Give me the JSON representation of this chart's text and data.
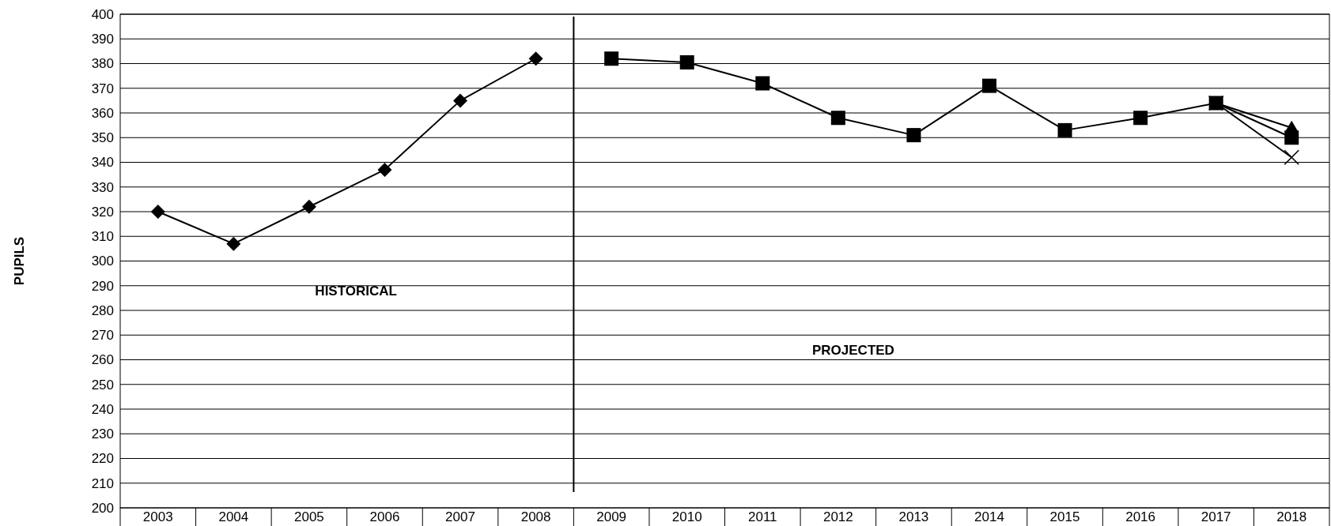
{
  "chart_data": {
    "type": "line",
    "ylabel": "PUPILS",
    "x": [
      2003,
      2004,
      2005,
      2006,
      2007,
      2008,
      2009,
      2010,
      2011,
      2012,
      2013,
      2014,
      2015,
      2016,
      2017,
      2018
    ],
    "xlim": [
      2002.5,
      2018.5
    ],
    "xticks": [
      2003,
      2004,
      2005,
      2006,
      2007,
      2008,
      2009,
      2010,
      2011,
      2012,
      2013,
      2014,
      2015,
      2016,
      2017,
      2018
    ],
    "ylim": [
      200,
      400
    ],
    "yticks": [
      200,
      210,
      220,
      230,
      240,
      250,
      260,
      270,
      280,
      290,
      300,
      310,
      320,
      330,
      340,
      350,
      360,
      370,
      380,
      390,
      400
    ],
    "grid": "y",
    "line_style": "solid",
    "series": [
      {
        "color": "#000000",
        "marker": "diamond",
        "values": [
          320,
          307,
          322,
          337,
          365,
          382,
          null,
          null,
          null,
          null,
          null,
          null,
          null,
          null,
          null,
          null
        ]
      },
      {
        "color": "#000000",
        "marker": "square",
        "values": [
          null,
          null,
          null,
          null,
          null,
          null,
          382,
          380.5,
          372,
          358,
          351,
          371,
          353,
          358,
          364,
          350
        ]
      },
      {
        "color": "#000000",
        "marker": "cross",
        "values": [
          null,
          null,
          null,
          null,
          null,
          null,
          null,
          null,
          null,
          null,
          null,
          null,
          null,
          null,
          364,
          342
        ]
      },
      {
        "color": "#000000",
        "marker": "triangle",
        "values": [
          null,
          null,
          null,
          null,
          null,
          null,
          null,
          null,
          null,
          null,
          null,
          null,
          null,
          null,
          364,
          354
        ]
      }
    ],
    "ref_lines": [
      {
        "axis": "x",
        "value": 2008.5,
        "color": "#000000"
      }
    ],
    "annotations": [
      "HISTORICAL",
      "PROJECTED"
    ]
  }
}
